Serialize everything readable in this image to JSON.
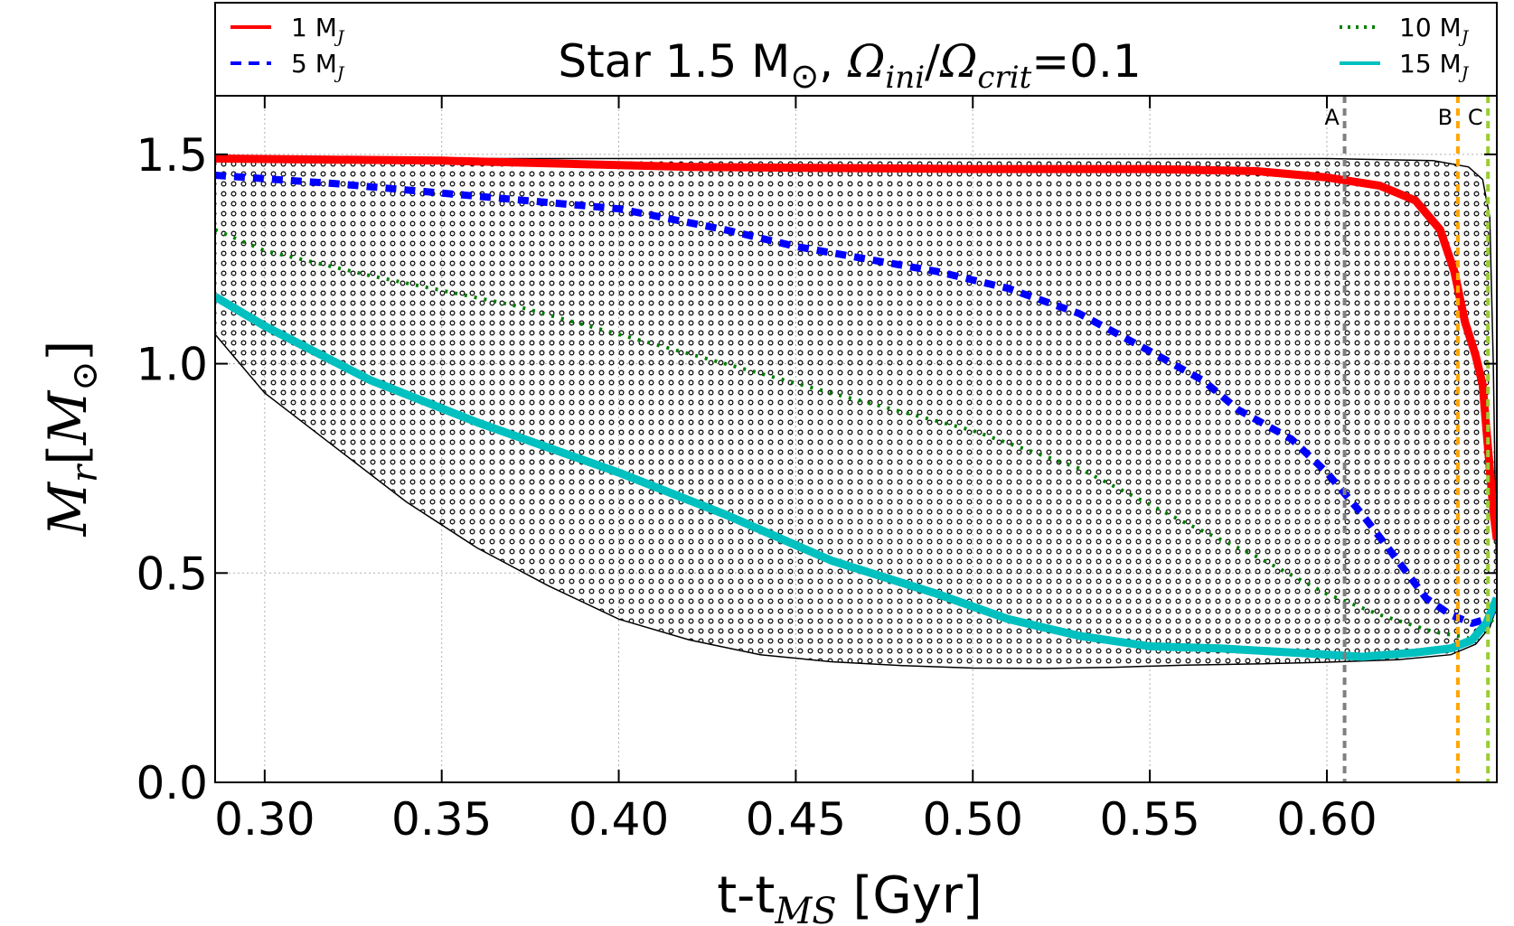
{
  "chart_data": {
    "type": "line",
    "title_parts": {
      "prefix": "Star 1.5 M",
      "sun": "⊙",
      "sep": ", ",
      "omega1": "Ω",
      "sub1": "ini",
      "slash": "/",
      "omega2": "Ω",
      "sub2": "crit",
      "eq": "=0.1"
    },
    "xlabel_parts": {
      "main": "t-t",
      "sub": "MS",
      "unit": " [Gyr]"
    },
    "ylabel_parts": {
      "m": "M",
      "sub": "r",
      "open": "[",
      "m2": "M",
      "sun": "⊙",
      "close": "]"
    },
    "xlim": [
      0.286,
      0.648
    ],
    "ylim": [
      0.0,
      1.64
    ],
    "x_ticks": [
      {
        "v": 0.3,
        "label": "0.30"
      },
      {
        "v": 0.35,
        "label": "0.35"
      },
      {
        "v": 0.4,
        "label": "0.40"
      },
      {
        "v": 0.45,
        "label": "0.45"
      },
      {
        "v": 0.5,
        "label": "0.50"
      },
      {
        "v": 0.55,
        "label": "0.55"
      },
      {
        "v": 0.6,
        "label": "0.60"
      }
    ],
    "y_ticks": [
      {
        "v": 0.0,
        "label": "0.0"
      },
      {
        "v": 0.5,
        "label": "0.5"
      },
      {
        "v": 1.0,
        "label": "1.0"
      },
      {
        "v": 1.5,
        "label": "1.5"
      }
    ],
    "grid": true,
    "convective_zone": {
      "upper": [
        [
          0.286,
          1.49
        ],
        [
          0.35,
          1.49
        ],
        [
          0.45,
          1.49
        ],
        [
          0.55,
          1.49
        ],
        [
          0.6,
          1.49
        ],
        [
          0.63,
          1.485
        ],
        [
          0.64,
          1.47
        ],
        [
          0.644,
          1.44
        ],
        [
          0.646,
          1.35
        ],
        [
          0.647,
          1.0
        ],
        [
          0.648,
          0.45
        ]
      ],
      "lower": [
        [
          0.286,
          1.07
        ],
        [
          0.3,
          0.93
        ],
        [
          0.32,
          0.8
        ],
        [
          0.34,
          0.67
        ],
        [
          0.36,
          0.56
        ],
        [
          0.38,
          0.47
        ],
        [
          0.4,
          0.39
        ],
        [
          0.42,
          0.34
        ],
        [
          0.44,
          0.305
        ],
        [
          0.46,
          0.288
        ],
        [
          0.48,
          0.279
        ],
        [
          0.5,
          0.273
        ],
        [
          0.52,
          0.272
        ],
        [
          0.54,
          0.275
        ],
        [
          0.56,
          0.28
        ],
        [
          0.58,
          0.283
        ],
        [
          0.6,
          0.287
        ],
        [
          0.62,
          0.293
        ],
        [
          0.635,
          0.305
        ],
        [
          0.642,
          0.33
        ],
        [
          0.646,
          0.37
        ],
        [
          0.648,
          0.42
        ]
      ]
    },
    "series": [
      {
        "name": "1 M",
        "sub": "J",
        "color": "#ff0000",
        "style": "solid",
        "legend_pos": "top-left",
        "points": [
          [
            0.286,
            1.49
          ],
          [
            0.35,
            1.485
          ],
          [
            0.42,
            1.47
          ],
          [
            0.5,
            1.465
          ],
          [
            0.55,
            1.465
          ],
          [
            0.58,
            1.46
          ],
          [
            0.6,
            1.445
          ],
          [
            0.615,
            1.425
          ],
          [
            0.625,
            1.39
          ],
          [
            0.632,
            1.32
          ],
          [
            0.636,
            1.22
          ],
          [
            0.639,
            1.1
          ],
          [
            0.642,
            1.02
          ],
          [
            0.644,
            0.95
          ],
          [
            0.645,
            0.85
          ],
          [
            0.646,
            0.75
          ],
          [
            0.647,
            0.65
          ],
          [
            0.648,
            0.58
          ]
        ]
      },
      {
        "name": "5 M",
        "sub": "J",
        "color": "#0000ff",
        "style": "dashed",
        "legend_pos": "top-left",
        "points": [
          [
            0.286,
            1.45
          ],
          [
            0.32,
            1.43
          ],
          [
            0.36,
            1.4
          ],
          [
            0.4,
            1.37
          ],
          [
            0.43,
            1.32
          ],
          [
            0.45,
            1.28
          ],
          [
            0.47,
            1.25
          ],
          [
            0.49,
            1.22
          ],
          [
            0.51,
            1.18
          ],
          [
            0.53,
            1.12
          ],
          [
            0.55,
            1.03
          ],
          [
            0.565,
            0.96
          ],
          [
            0.575,
            0.89
          ],
          [
            0.59,
            0.82
          ],
          [
            0.6,
            0.74
          ],
          [
            0.61,
            0.64
          ],
          [
            0.62,
            0.53
          ],
          [
            0.628,
            0.44
          ],
          [
            0.635,
            0.4
          ],
          [
            0.641,
            0.38
          ],
          [
            0.645,
            0.39
          ],
          [
            0.648,
            0.42
          ]
        ]
      },
      {
        "name": "10 M",
        "sub": "J",
        "color": "#008000",
        "style": "dotted",
        "legend_pos": "top-right",
        "points": [
          [
            0.286,
            1.32
          ],
          [
            0.3,
            1.27
          ],
          [
            0.33,
            1.21
          ],
          [
            0.37,
            1.14
          ],
          [
            0.4,
            1.07
          ],
          [
            0.43,
            1.0
          ],
          [
            0.46,
            0.93
          ],
          [
            0.5,
            0.84
          ],
          [
            0.53,
            0.75
          ],
          [
            0.56,
            0.62
          ],
          [
            0.58,
            0.54
          ],
          [
            0.6,
            0.45
          ],
          [
            0.615,
            0.4
          ],
          [
            0.63,
            0.36
          ],
          [
            0.64,
            0.345
          ],
          [
            0.645,
            0.37
          ],
          [
            0.648,
            0.4
          ]
        ]
      },
      {
        "name": "15 M",
        "sub": "J",
        "color": "#00c0c0",
        "style": "solid",
        "legend_pos": "top-right",
        "points": [
          [
            0.286,
            1.16
          ],
          [
            0.3,
            1.09
          ],
          [
            0.33,
            0.96
          ],
          [
            0.36,
            0.86
          ],
          [
            0.4,
            0.74
          ],
          [
            0.43,
            0.64
          ],
          [
            0.46,
            0.53
          ],
          [
            0.49,
            0.45
          ],
          [
            0.51,
            0.39
          ],
          [
            0.53,
            0.35
          ],
          [
            0.55,
            0.325
          ],
          [
            0.57,
            0.32
          ],
          [
            0.59,
            0.31
          ],
          [
            0.61,
            0.3
          ],
          [
            0.625,
            0.31
          ],
          [
            0.635,
            0.32
          ],
          [
            0.641,
            0.34
          ],
          [
            0.645,
            0.38
          ],
          [
            0.648,
            0.44
          ]
        ]
      }
    ],
    "vlines": [
      {
        "label": "A",
        "x": 0.605,
        "color": "#808080"
      },
      {
        "label": "B",
        "x": 0.637,
        "color": "#ffa500"
      },
      {
        "label": "C",
        "x": 0.6455,
        "color": "#9acd32"
      }
    ]
  }
}
